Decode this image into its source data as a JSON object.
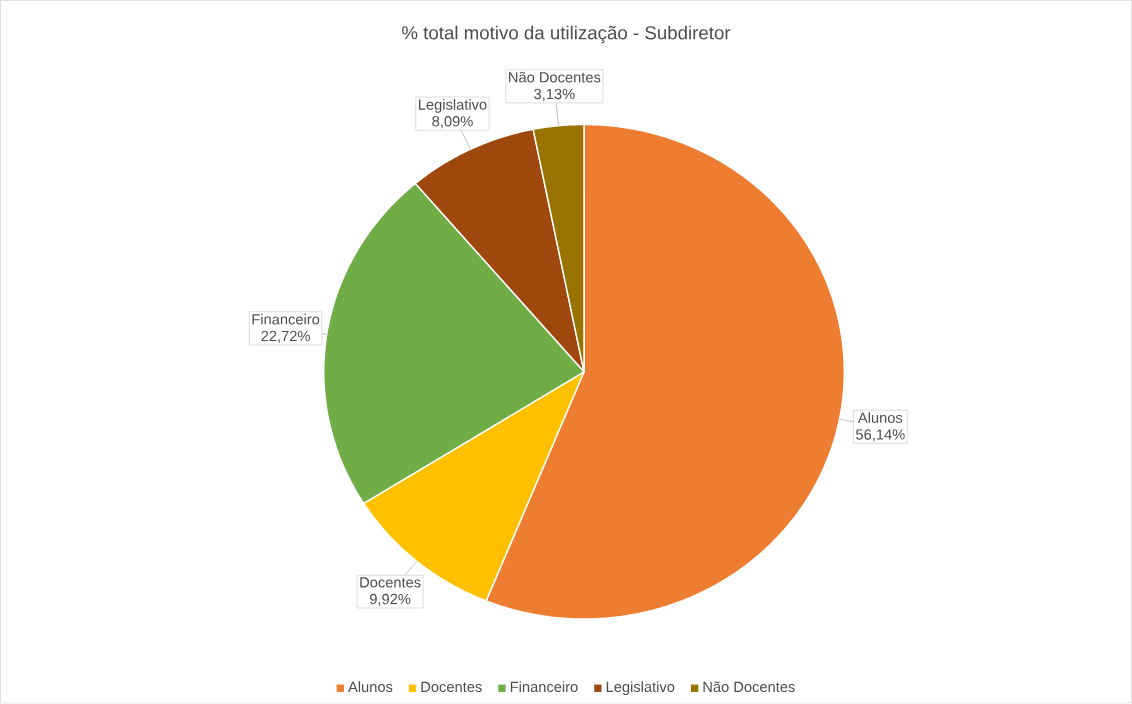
{
  "chart_data": {
    "type": "pie",
    "title": "% total motivo da utilização - Subdiretor",
    "categories": [
      "Alunos",
      "Docentes",
      "Financeiro",
      "Legislativo",
      "Não Docentes"
    ],
    "values": [
      56.14,
      9.92,
      22.72,
      8.09,
      3.13
    ],
    "value_labels": [
      "56,14%",
      "9,92%",
      "22,72%",
      "8,09%",
      "3,13%"
    ],
    "colors": [
      "#ed7d31",
      "#ffc000",
      "#70ad47",
      "#9e480e",
      "#997300"
    ],
    "legend": "bottom"
  }
}
